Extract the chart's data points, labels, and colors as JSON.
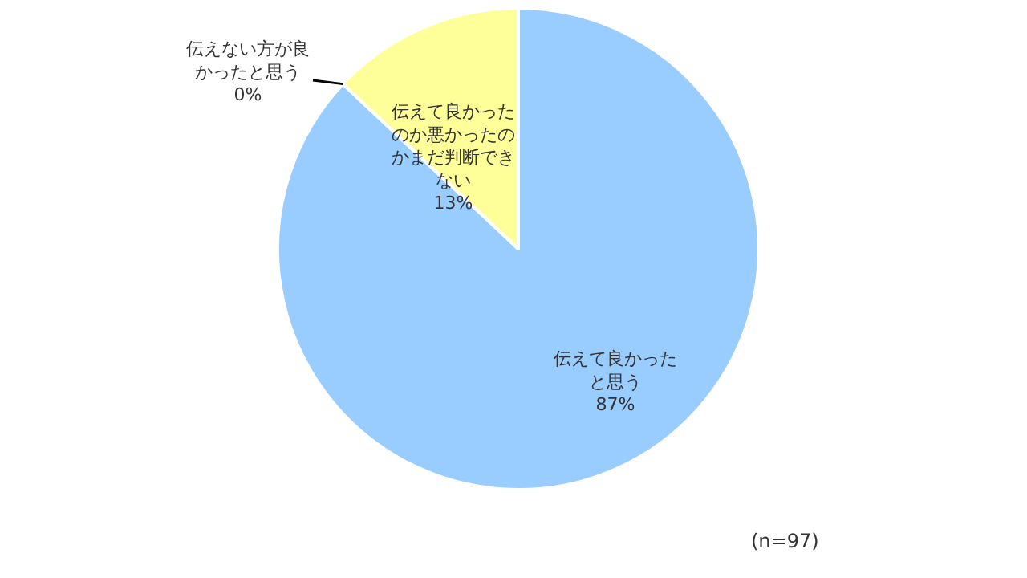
{
  "chart_data": {
    "type": "pie",
    "categories": [
      "伝えて良かったと思う",
      "伝えない方が良かったと思う",
      "伝えて良かったのか悪かったのかまだ判断できない"
    ],
    "values": [
      87,
      0,
      13
    ],
    "value_labels": [
      "87%",
      "0%",
      "13%"
    ],
    "colors": [
      "#99ccff",
      "#999999",
      "#ffff99"
    ],
    "annotations": [
      "(n=97)"
    ]
  }
}
